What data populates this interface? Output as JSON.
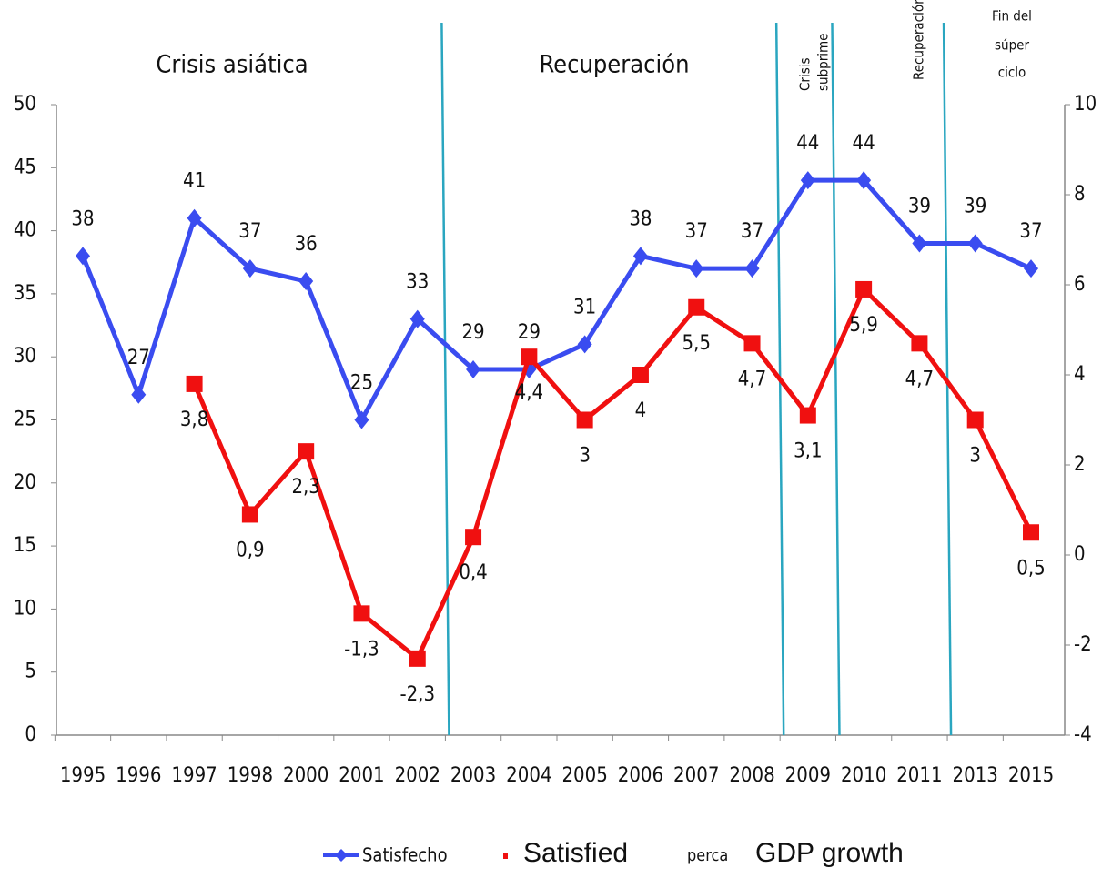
{
  "chart_data": {
    "type": "line",
    "annotations": [
      "Crisis asiática",
      "Recuperación",
      [
        "Crisis",
        "subprime"
      ],
      "Recuperación",
      [
        "Fin del",
        "súper",
        "ciclo"
      ]
    ],
    "categories": [
      "1995",
      "1996",
      "1997",
      "1998",
      "2000",
      "2001",
      "2002",
      "2003",
      "2004",
      "2005",
      "2006",
      "2007",
      "2008",
      "2009",
      "2010",
      "2011",
      "2013",
      "2015"
    ],
    "series": [
      {
        "name": "Satisfecho",
        "color": "#3a4cf0",
        "marker": "diamond",
        "values": [
          38,
          27,
          41,
          37,
          36,
          25,
          33,
          29,
          29,
          31,
          38,
          37,
          37,
          44,
          44,
          39,
          39,
          37
        ]
      },
      {
        "name": "GDP growth",
        "color": "#f01010",
        "marker": "square",
        "axis": "y2",
        "values": [
          null,
          null,
          3.8,
          0.9,
          2.3,
          -1.3,
          -2.3,
          0.4,
          4.4,
          3,
          4,
          5.5,
          4.7,
          3.1,
          5.9,
          4.7,
          3,
          0.5
        ],
        "value_labels": [
          null,
          null,
          "3,8",
          "0,9",
          "2,3",
          "-1,3",
          "-2,3",
          "0,4",
          "4,4",
          "3",
          "4",
          "5,5",
          "4,7",
          "3,1",
          "5,9",
          "4,7",
          "3",
          "0,5"
        ]
      }
    ],
    "legend_notes": [
      "Satisfied",
      "perca"
    ],
    "ylim": [
      0,
      50
    ],
    "yticks": [
      0,
      5,
      10,
      15,
      20,
      25,
      30,
      35,
      40,
      45,
      50
    ],
    "y2lim": [
      -4,
      10
    ],
    "y2ticks": [
      -4,
      -2,
      0,
      2,
      4,
      6,
      8,
      10
    ]
  }
}
